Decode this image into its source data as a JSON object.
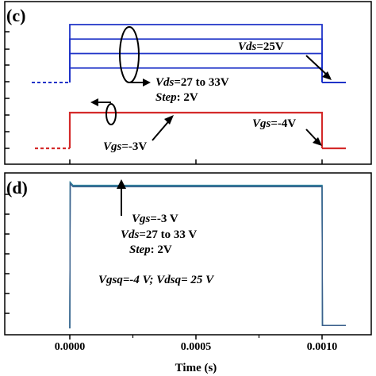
{
  "panels": [
    {
      "letter": "(c)",
      "ann_vds_fixed": {
        "italic": "Vds",
        "rest": "=25V"
      },
      "ann_vds_range": {
        "italic": "Vds",
        "rest": "=27 to 33V"
      },
      "ann_step": {
        "italic": "Step",
        "rest": ": 2V"
      },
      "ann_vgs_low": {
        "italic": "Vgs",
        "rest": "=-4V"
      },
      "ann_vgs_high": {
        "italic": "Vgs",
        "rest": "=-3V"
      }
    },
    {
      "letter": "(d)",
      "ann_vgs": {
        "italic": "Vgs",
        "rest": "=-3 V"
      },
      "ann_vds": {
        "italic": "Vds",
        "rest": "=27 to 33 V"
      },
      "ann_step": {
        "italic": "Step",
        "rest": ": 2V"
      },
      "ann_quiescent": "Vgsq=-4 V; Vdsq= 25 V"
    }
  ],
  "colors": {
    "vds": "#1f33c8",
    "vgs": "#d42a2a",
    "current": "#2a9aa8",
    "current_alt": "#3d5f8c"
  },
  "chart_data": {
    "type": "line",
    "xlabel": "Time (s)",
    "x_ticks": [
      "0.0000",
      "0.0005",
      "0.0010"
    ],
    "x_tick_values": [
      0.0,
      0.0005,
      0.001
    ],
    "xlim": [
      -0.00012,
      0.00112
    ],
    "panel_c": {
      "vds_quiescent": 25,
      "vds_pulse_levels": [
        27,
        29,
        31,
        33
      ],
      "vgs_quiescent": -4,
      "vgs_pulse": -3,
      "pulse_start": 0.0,
      "pulse_end": 0.001
    },
    "panel_d": {
      "description_free": true,
      "series_count": 4,
      "pulse_start": 0.0,
      "pulse_end": 0.001,
      "plateau_relative": 0.97,
      "baseline_relative": 0.02
    }
  }
}
